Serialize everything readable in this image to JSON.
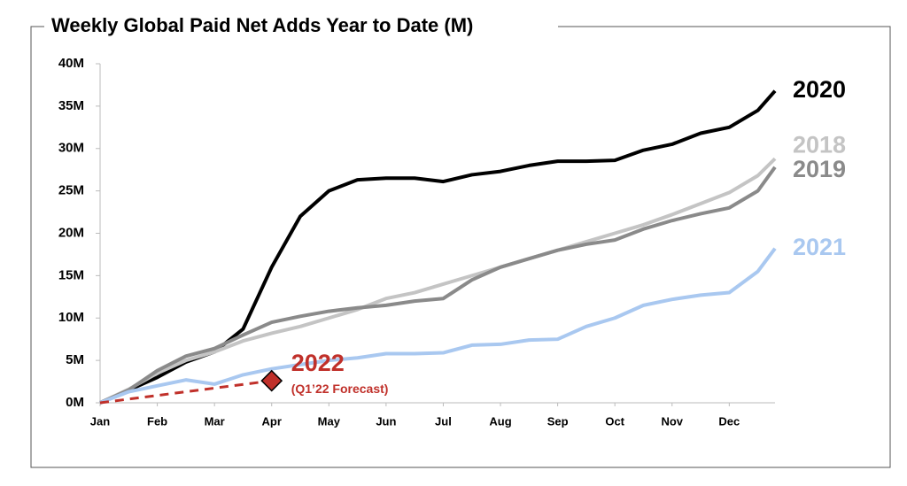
{
  "chart_data": {
    "type": "line",
    "title": "Weekly Global Paid Net Adds Year to Date (M)",
    "xlim": [
      0,
      11.8
    ],
    "xticks": [
      {
        "value": 0,
        "label": "Jan"
      },
      {
        "value": 1,
        "label": "Feb"
      },
      {
        "value": 2,
        "label": "Mar"
      },
      {
        "value": 3,
        "label": "Apr"
      },
      {
        "value": 4,
        "label": "May"
      },
      {
        "value": 5,
        "label": "Jun"
      },
      {
        "value": 6,
        "label": "Jul"
      },
      {
        "value": 7,
        "label": "Aug"
      },
      {
        "value": 8,
        "label": "Sep"
      },
      {
        "value": 9,
        "label": "Oct"
      },
      {
        "value": 10,
        "label": "Nov"
      },
      {
        "value": 11,
        "label": "Dec"
      }
    ],
    "ylim": [
      0,
      40
    ],
    "yticks": [
      {
        "value": 0,
        "label": "0M"
      },
      {
        "value": 5,
        "label": "5M"
      },
      {
        "value": 10,
        "label": "10M"
      },
      {
        "value": 15,
        "label": "15M"
      },
      {
        "value": 20,
        "label": "20M"
      },
      {
        "value": 25,
        "label": "25M"
      },
      {
        "value": 30,
        "label": "30M"
      },
      {
        "value": 35,
        "label": "35M"
      },
      {
        "value": 40,
        "label": "40M"
      }
    ],
    "grid": false,
    "x": [
      0,
      0.5,
      1,
      1.5,
      2,
      2.5,
      3,
      3.5,
      4,
      4.5,
      5,
      5.5,
      6,
      6.5,
      7,
      7.5,
      8,
      8.5,
      9,
      9.5,
      10,
      10.5,
      11,
      11.5,
      11.8
    ],
    "series": [
      {
        "name": "2020",
        "color": "#000000",
        "values": [
          0,
          1.5,
          3,
          4.8,
          6,
          8.7,
          16,
          22,
          25,
          26.3,
          26.5,
          26.5,
          26.1,
          26.9,
          27.3,
          28,
          28.5,
          28.5,
          28.6,
          29.8,
          30.5,
          31.8,
          32.5,
          34.5,
          36.8
        ]
      },
      {
        "name": "2018",
        "color": "#c4c4c4",
        "values": [
          0,
          1.6,
          3.5,
          5,
          6,
          7.3,
          8.2,
          9,
          10,
          11,
          12.3,
          13,
          14,
          15,
          16,
          17,
          18,
          19,
          20,
          21,
          22.2,
          23.5,
          24.8,
          26.8,
          28.8
        ]
      },
      {
        "name": "2019",
        "color": "#8a8a8a",
        "values": [
          0,
          1.5,
          3.8,
          5.5,
          6.4,
          8,
          9.5,
          10.2,
          10.8,
          11.2,
          11.5,
          12,
          12.3,
          14.5,
          16,
          17,
          18,
          18.7,
          19.2,
          20.5,
          21.5,
          22.3,
          23,
          25,
          27.8
        ]
      },
      {
        "name": "2021",
        "color": "#a9c8f0",
        "values": [
          0,
          1.3,
          2,
          2.7,
          2.2,
          3.3,
          4,
          4.5,
          5,
          5.3,
          5.8,
          5.8,
          5.9,
          6.8,
          6.9,
          7.4,
          7.5,
          9,
          10,
          11.5,
          12.2,
          12.7,
          13,
          15.5,
          18.2
        ]
      },
      {
        "name": "2022",
        "color": "#c0302a",
        "dashed": true,
        "x": [
          0,
          3
        ],
        "values": [
          0,
          2.6
        ]
      }
    ],
    "annotation": "(Q1’22 Forecast)"
  }
}
